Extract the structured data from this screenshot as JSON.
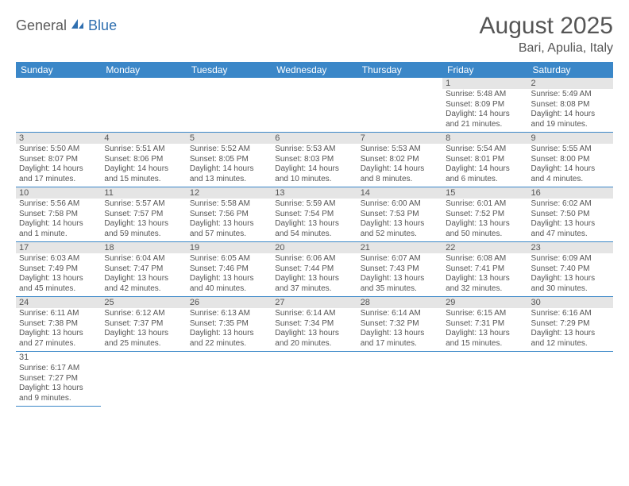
{
  "logo": {
    "text1": "General",
    "text2": "Blue"
  },
  "title": "August 2025",
  "location": "Bari, Apulia, Italy",
  "colors": {
    "header_bg": "#3b87c8",
    "header_text": "#ffffff",
    "daynum_bg": "#e5e5e5",
    "text": "#555555",
    "border": "#3b87c8"
  },
  "dayHeaders": [
    "Sunday",
    "Monday",
    "Tuesday",
    "Wednesday",
    "Thursday",
    "Friday",
    "Saturday"
  ],
  "weeks": [
    [
      null,
      null,
      null,
      null,
      null,
      {
        "n": "1",
        "sr": "5:48 AM",
        "ss": "8:09 PM",
        "dl": "14 hours and 21 minutes."
      },
      {
        "n": "2",
        "sr": "5:49 AM",
        "ss": "8:08 PM",
        "dl": "14 hours and 19 minutes."
      }
    ],
    [
      {
        "n": "3",
        "sr": "5:50 AM",
        "ss": "8:07 PM",
        "dl": "14 hours and 17 minutes."
      },
      {
        "n": "4",
        "sr": "5:51 AM",
        "ss": "8:06 PM",
        "dl": "14 hours and 15 minutes."
      },
      {
        "n": "5",
        "sr": "5:52 AM",
        "ss": "8:05 PM",
        "dl": "14 hours and 13 minutes."
      },
      {
        "n": "6",
        "sr": "5:53 AM",
        "ss": "8:03 PM",
        "dl": "14 hours and 10 minutes."
      },
      {
        "n": "7",
        "sr": "5:53 AM",
        "ss": "8:02 PM",
        "dl": "14 hours and 8 minutes."
      },
      {
        "n": "8",
        "sr": "5:54 AM",
        "ss": "8:01 PM",
        "dl": "14 hours and 6 minutes."
      },
      {
        "n": "9",
        "sr": "5:55 AM",
        "ss": "8:00 PM",
        "dl": "14 hours and 4 minutes."
      }
    ],
    [
      {
        "n": "10",
        "sr": "5:56 AM",
        "ss": "7:58 PM",
        "dl": "14 hours and 1 minute."
      },
      {
        "n": "11",
        "sr": "5:57 AM",
        "ss": "7:57 PM",
        "dl": "13 hours and 59 minutes."
      },
      {
        "n": "12",
        "sr": "5:58 AM",
        "ss": "7:56 PM",
        "dl": "13 hours and 57 minutes."
      },
      {
        "n": "13",
        "sr": "5:59 AM",
        "ss": "7:54 PM",
        "dl": "13 hours and 54 minutes."
      },
      {
        "n": "14",
        "sr": "6:00 AM",
        "ss": "7:53 PM",
        "dl": "13 hours and 52 minutes."
      },
      {
        "n": "15",
        "sr": "6:01 AM",
        "ss": "7:52 PM",
        "dl": "13 hours and 50 minutes."
      },
      {
        "n": "16",
        "sr": "6:02 AM",
        "ss": "7:50 PM",
        "dl": "13 hours and 47 minutes."
      }
    ],
    [
      {
        "n": "17",
        "sr": "6:03 AM",
        "ss": "7:49 PM",
        "dl": "13 hours and 45 minutes."
      },
      {
        "n": "18",
        "sr": "6:04 AM",
        "ss": "7:47 PM",
        "dl": "13 hours and 42 minutes."
      },
      {
        "n": "19",
        "sr": "6:05 AM",
        "ss": "7:46 PM",
        "dl": "13 hours and 40 minutes."
      },
      {
        "n": "20",
        "sr": "6:06 AM",
        "ss": "7:44 PM",
        "dl": "13 hours and 37 minutes."
      },
      {
        "n": "21",
        "sr": "6:07 AM",
        "ss": "7:43 PM",
        "dl": "13 hours and 35 minutes."
      },
      {
        "n": "22",
        "sr": "6:08 AM",
        "ss": "7:41 PM",
        "dl": "13 hours and 32 minutes."
      },
      {
        "n": "23",
        "sr": "6:09 AM",
        "ss": "7:40 PM",
        "dl": "13 hours and 30 minutes."
      }
    ],
    [
      {
        "n": "24",
        "sr": "6:11 AM",
        "ss": "7:38 PM",
        "dl": "13 hours and 27 minutes."
      },
      {
        "n": "25",
        "sr": "6:12 AM",
        "ss": "7:37 PM",
        "dl": "13 hours and 25 minutes."
      },
      {
        "n": "26",
        "sr": "6:13 AM",
        "ss": "7:35 PM",
        "dl": "13 hours and 22 minutes."
      },
      {
        "n": "27",
        "sr": "6:14 AM",
        "ss": "7:34 PM",
        "dl": "13 hours and 20 minutes."
      },
      {
        "n": "28",
        "sr": "6:14 AM",
        "ss": "7:32 PM",
        "dl": "13 hours and 17 minutes."
      },
      {
        "n": "29",
        "sr": "6:15 AM",
        "ss": "7:31 PM",
        "dl": "13 hours and 15 minutes."
      },
      {
        "n": "30",
        "sr": "6:16 AM",
        "ss": "7:29 PM",
        "dl": "13 hours and 12 minutes."
      }
    ],
    [
      {
        "n": "31",
        "sr": "6:17 AM",
        "ss": "7:27 PM",
        "dl": "13 hours and 9 minutes."
      },
      null,
      null,
      null,
      null,
      null,
      null
    ]
  ],
  "labels": {
    "sunrise": "Sunrise:",
    "sunset": "Sunset:",
    "daylight": "Daylight:"
  }
}
